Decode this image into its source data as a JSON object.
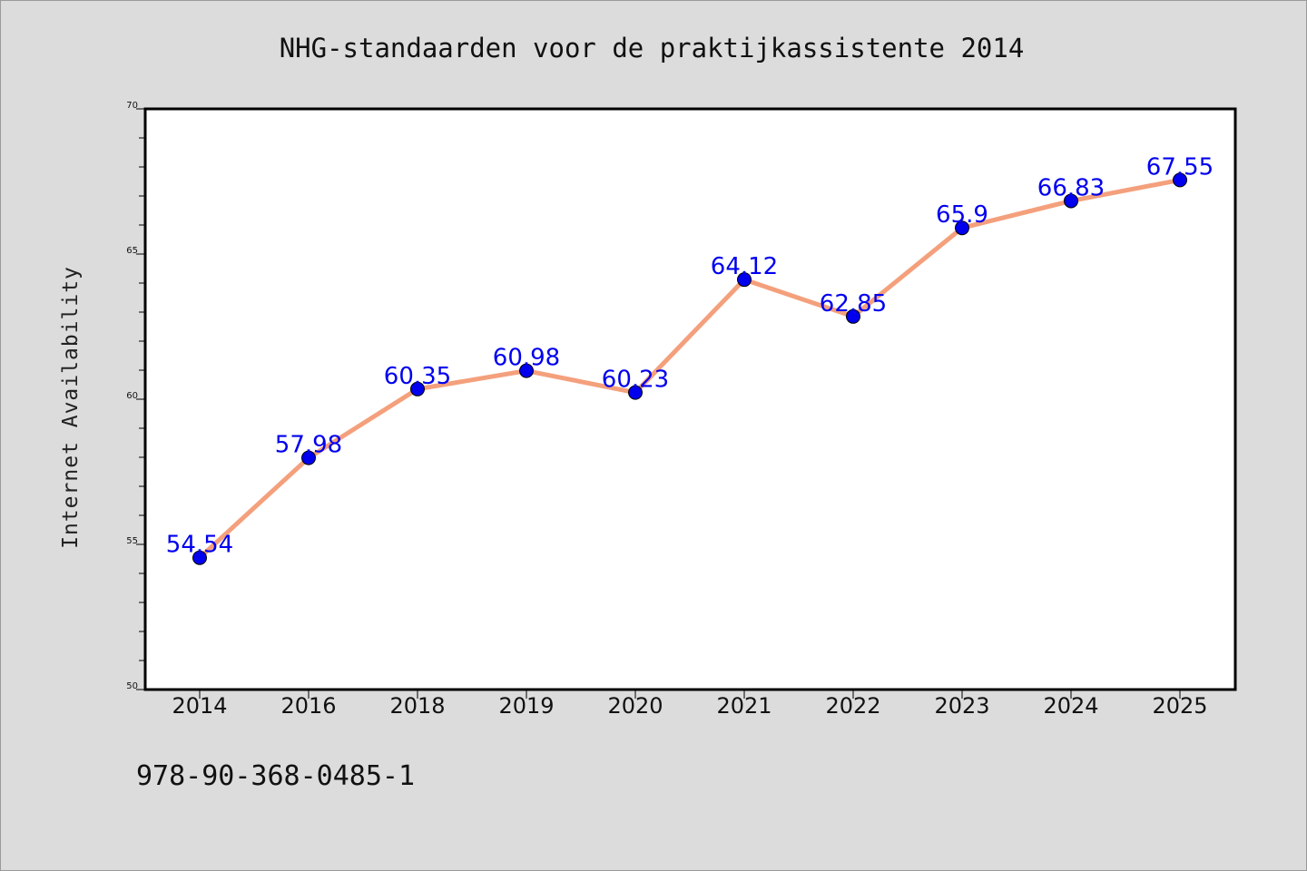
{
  "footer": {
    "isbn": "978-90-368-0485-1"
  },
  "colors": {
    "background": "#dcdcdc",
    "plot_area": "#ffffff",
    "line": "#f4a07c",
    "marker": "#0000ee",
    "data_label": "#0000ee"
  },
  "chart_data": {
    "type": "line",
    "title": "NHG-standaarden voor de praktijkassistente 2014",
    "xlabel": "",
    "ylabel": "Internet Availability",
    "categories": [
      "2014",
      "2016",
      "2018",
      "2019",
      "2020",
      "2021",
      "2022",
      "2023",
      "2024",
      "2025"
    ],
    "series": [
      {
        "values": [
          54.54,
          57.98,
          60.35,
          60.98,
          60.23,
          64.12,
          62.85,
          65.9,
          66.83,
          67.55
        ]
      }
    ],
    "data_labels": [
      "54.54",
      "57.98",
      "60.35",
      "60.98",
      "60.23",
      "64.12",
      "62.85",
      "65.9",
      "66.83",
      "67.55"
    ],
    "ylim": [
      50,
      70
    ],
    "yticks": [
      "50",
      "55",
      "60",
      "65",
      "70"
    ],
    "y_minor_step": 1,
    "grid": false,
    "legend": "none"
  }
}
